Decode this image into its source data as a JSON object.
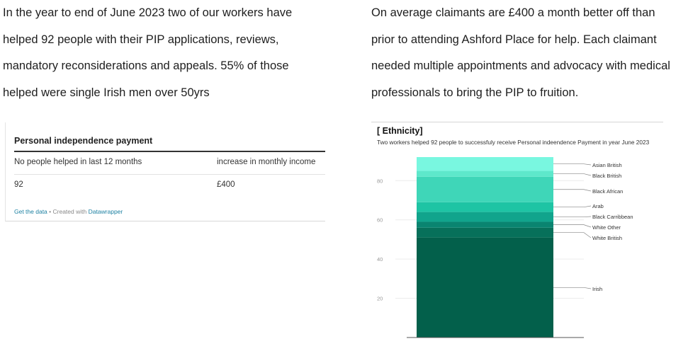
{
  "paragraph_left": {
    "lines": [
      "In the year to end of June 2023 two of our workers have",
      "helped 92 people with their PIP applications, reviews,",
      "mandatory reconsiderations and appeals. 55% of those",
      "helped were single Irish men over 50yrs"
    ]
  },
  "paragraph_right": {
    "lines": [
      "On average claimants are £400 a month better off than",
      "prior to attending Ashford Place for help.  Each claimant",
      "needed multiple appointments and advocacy with medical",
      "professionals to bring the PIP to fruition."
    ]
  },
  "table": {
    "title": "Personal independence payment",
    "headers": [
      "No people helped in last 12 months",
      "increase in monthly income"
    ],
    "row": [
      "92",
      "£400"
    ],
    "footer_link1": "Get the data",
    "footer_sep": " • Created with ",
    "footer_link2": "Datawrapper",
    "rule_color": "#333333",
    "link_color": "#1d81a2"
  },
  "chart_data": {
    "type": "bar",
    "stacked": true,
    "title": "[ Ethnicity]",
    "subtitle": "Two workers helped 92 people to successfuly receive Personal indeendence Payment in year June 2023",
    "xlabel": "",
    "ylabel": "",
    "ylim": [
      0,
      92
    ],
    "yticks": [
      20,
      40,
      60,
      80
    ],
    "grid": true,
    "categories": [
      ""
    ],
    "series": [
      {
        "name": "Irish",
        "values": [
          51
        ],
        "color": "#03604b"
      },
      {
        "name": "White British",
        "values": [
          5
        ],
        "color": "#07705a"
      },
      {
        "name": "White Other",
        "values": [
          3
        ],
        "color": "#0a8470"
      },
      {
        "name": "Black Carribbean",
        "values": [
          5
        ],
        "color": "#11a48c"
      },
      {
        "name": "Arab",
        "values": [
          5
        ],
        "color": "#1ec4a4"
      },
      {
        "name": "Black African",
        "values": [
          13
        ],
        "color": "#3fd6b8"
      },
      {
        "name": "Black British",
        "values": [
          3
        ],
        "color": "#5ee8cb"
      },
      {
        "name": "Asian British",
        "values": [
          7
        ],
        "color": "#79f7e0"
      }
    ]
  }
}
